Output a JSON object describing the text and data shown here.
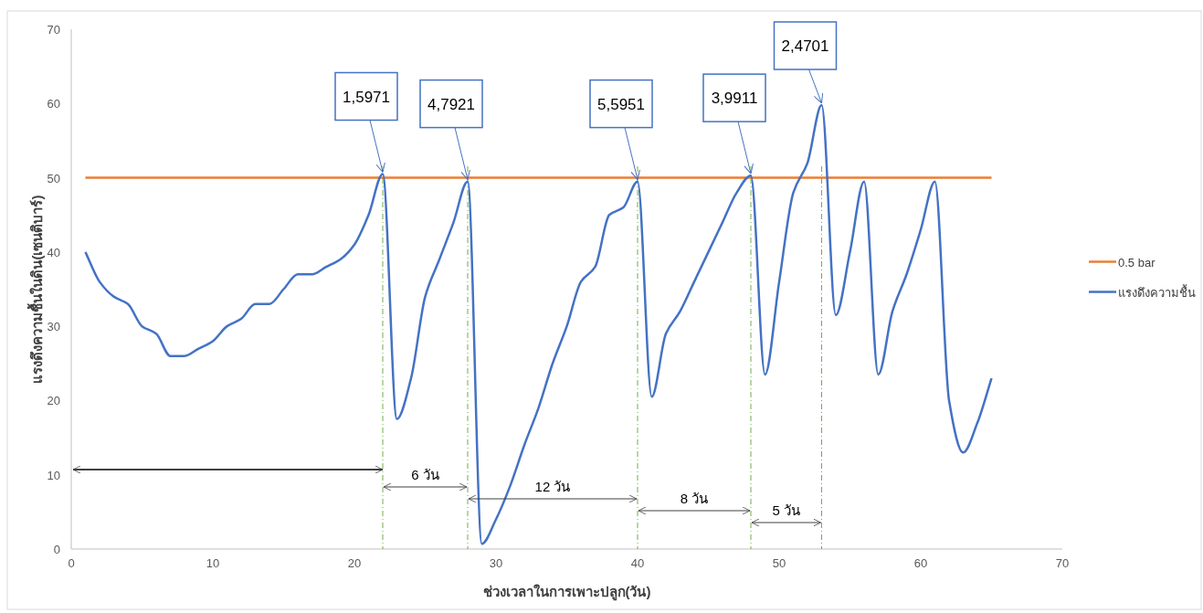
{
  "chart_data": {
    "type": "line",
    "xlabel": "ช่วงเวลาในการเพาะปลูก(วัน)",
    "ylabel": "แรงดึงความชื้นในดิน(เซนติบาร์)",
    "xlim": [
      0,
      70
    ],
    "ylim": [
      0,
      70
    ],
    "xticks": [
      0,
      10,
      20,
      30,
      40,
      50,
      60,
      70
    ],
    "yticks": [
      0,
      10,
      20,
      30,
      40,
      50,
      60,
      70
    ],
    "legend": "right",
    "series": [
      {
        "name": "0.5 bar",
        "color": "#ed7d31",
        "x": [
          1,
          65
        ],
        "values": [
          50,
          50
        ]
      },
      {
        "name": "แรงดึงความชื้น",
        "color": "#4472c4",
        "x": [
          1,
          2,
          3,
          4,
          5,
          6,
          7,
          8,
          9,
          10,
          11,
          12,
          13,
          14,
          15,
          16,
          17,
          18,
          19,
          20,
          21,
          22,
          23,
          24,
          25,
          26,
          27,
          28,
          29,
          30,
          31,
          32,
          33,
          34,
          35,
          36,
          37,
          38,
          39,
          40,
          41,
          42,
          43,
          44,
          45,
          46,
          47,
          48,
          49,
          50,
          51,
          52,
          53,
          54,
          55,
          56,
          57,
          58,
          59,
          60,
          61,
          62,
          63,
          64,
          65
        ],
        "values": [
          40,
          36,
          34,
          33,
          30,
          29,
          26,
          26,
          27,
          28,
          30,
          31,
          33,
          33,
          35,
          37,
          37,
          38,
          39,
          41,
          45,
          50.5,
          17.5,
          23,
          34,
          39,
          44,
          49.5,
          0.7,
          4,
          8.5,
          14,
          19,
          25,
          30,
          36,
          38,
          45,
          46,
          49.5,
          20.5,
          29,
          32,
          36,
          40,
          44,
          48,
          50.3,
          23.5,
          36,
          48,
          52,
          59.8,
          31.5,
          40,
          49.5,
          23.5,
          32,
          37,
          43,
          49.5,
          20,
          13,
          17,
          23
        ]
      }
    ],
    "ref_lines": [
      {
        "axis": "x",
        "value": 22,
        "color": "#70ad47",
        "line_style": "dashed"
      },
      {
        "axis": "x",
        "value": 28,
        "color": "#70ad47",
        "line_style": "dashed"
      },
      {
        "axis": "x",
        "value": 40,
        "color": "#70ad47",
        "line_style": "dashed"
      },
      {
        "axis": "x",
        "value": 48,
        "color": "#70ad47",
        "line_style": "dashed"
      },
      {
        "axis": "x",
        "value": 53,
        "color": "#70ad47",
        "line_style": "dashed"
      }
    ],
    "annotations": [
      {
        "text": "1,5971",
        "x": 22,
        "y": 50.5
      },
      {
        "text": "4,7921",
        "x": 28,
        "y": 49.5
      },
      {
        "text": "5,5951",
        "x": 40,
        "y": 49.5
      },
      {
        "text": "3,9911",
        "x": 48,
        "y": 50.3
      },
      {
        "text": "2,4701",
        "x": 53,
        "y": 59.8
      },
      "6 วัน",
      "12 วัน",
      "8 วัน",
      "5 วัน"
    ]
  }
}
